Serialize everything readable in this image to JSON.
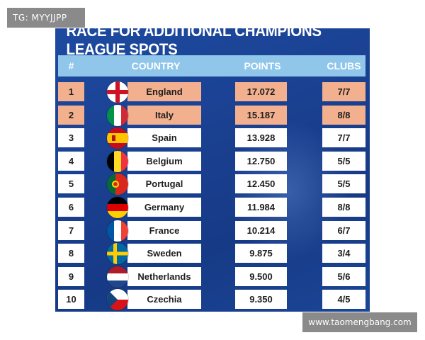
{
  "tag": "TG: MYYJJPP",
  "title": "RACE FOR ADDITIONAL CHAMPIONS LEAGUE SPOTS",
  "headers": {
    "rank": "#",
    "country": "COUNTRY",
    "points": "POINTS",
    "clubs": "CLUBS"
  },
  "rows": [
    {
      "rank": "1",
      "country": "England",
      "points": "17.072",
      "clubs": "7/7",
      "flag": "england-flag-icon",
      "highlight": true
    },
    {
      "rank": "2",
      "country": "Italy",
      "points": "15.187",
      "clubs": "8/8",
      "flag": "italy-flag-icon",
      "highlight": true
    },
    {
      "rank": "3",
      "country": "Spain",
      "points": "13.928",
      "clubs": "7/7",
      "flag": "spain-flag-icon",
      "highlight": false
    },
    {
      "rank": "4",
      "country": "Belgium",
      "points": "12.750",
      "clubs": "5/5",
      "flag": "belgium-flag-icon",
      "highlight": false
    },
    {
      "rank": "5",
      "country": "Portugal",
      "points": "12.450",
      "clubs": "5/5",
      "flag": "portugal-flag-icon",
      "highlight": false
    },
    {
      "rank": "6",
      "country": "Germany",
      "points": "11.984",
      "clubs": "8/8",
      "flag": "germany-flag-icon",
      "highlight": false
    },
    {
      "rank": "7",
      "country": "France",
      "points": "10.214",
      "clubs": "6/7",
      "flag": "france-flag-icon",
      "highlight": false
    },
    {
      "rank": "8",
      "country": "Sweden",
      "points": "9.875",
      "clubs": "3/4",
      "flag": "sweden-flag-icon",
      "highlight": false
    },
    {
      "rank": "9",
      "country": "Netherlands",
      "points": "9.500",
      "clubs": "5/6",
      "flag": "netherlands-flag-icon",
      "highlight": false
    },
    {
      "rank": "10",
      "country": "Czechia",
      "points": "9.350",
      "clubs": "4/5",
      "flag": "czechia-flag-icon",
      "highlight": false
    }
  ],
  "colors": {
    "background": "#1a3f8f",
    "header": "#8fc6ea",
    "highlight_row": "#f3b08e",
    "row": "#ffffff"
  },
  "watermark": "www.taomengbang.com"
}
